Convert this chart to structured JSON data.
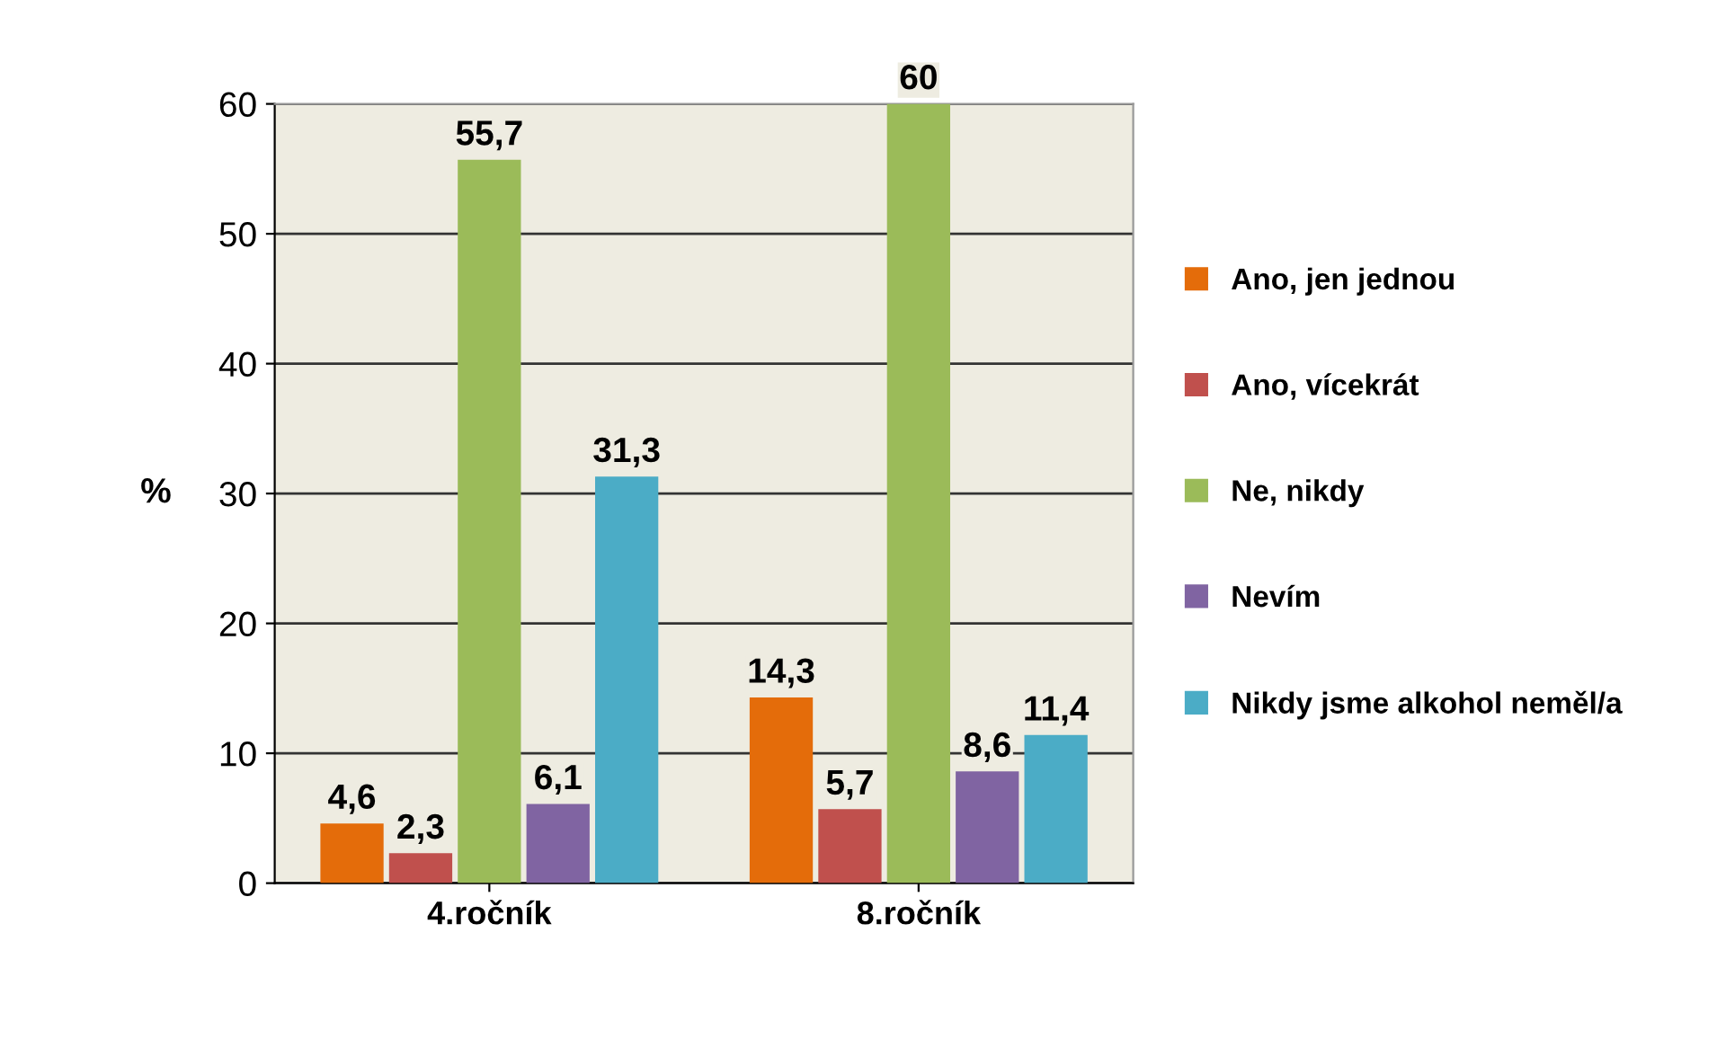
{
  "chart_data": {
    "type": "bar",
    "categories": [
      "4.ročník",
      "8.ročník"
    ],
    "ylabel": "%",
    "ylim": [
      0,
      60
    ],
    "yticks": [
      0,
      10,
      20,
      30,
      40,
      50,
      60
    ],
    "grid": "y",
    "legend": "right",
    "series": [
      {
        "name": "Ano, jen jednou",
        "color": "#e46c0a",
        "values": [
          4.6,
          14.3
        ],
        "value_labels": [
          "4,6",
          "14,3"
        ]
      },
      {
        "name": "Ano, vícekrát",
        "color": "#c0504d",
        "values": [
          2.3,
          5.7
        ],
        "value_labels": [
          "2,3",
          "5,7"
        ]
      },
      {
        "name": "Ne, nikdy",
        "color": "#9bbb59",
        "values": [
          55.7,
          60
        ],
        "value_labels": [
          "55,7",
          "60"
        ]
      },
      {
        "name": "Nevím",
        "color": "#8064a2",
        "values": [
          6.1,
          8.6
        ],
        "value_labels": [
          "6,1",
          "8,6"
        ]
      },
      {
        "name": "Nikdy jsme alkohol neměl/a",
        "color": "#4bacc6",
        "values": [
          31.3,
          11.4
        ],
        "value_labels": [
          "31,3",
          "11,4"
        ]
      }
    ]
  }
}
